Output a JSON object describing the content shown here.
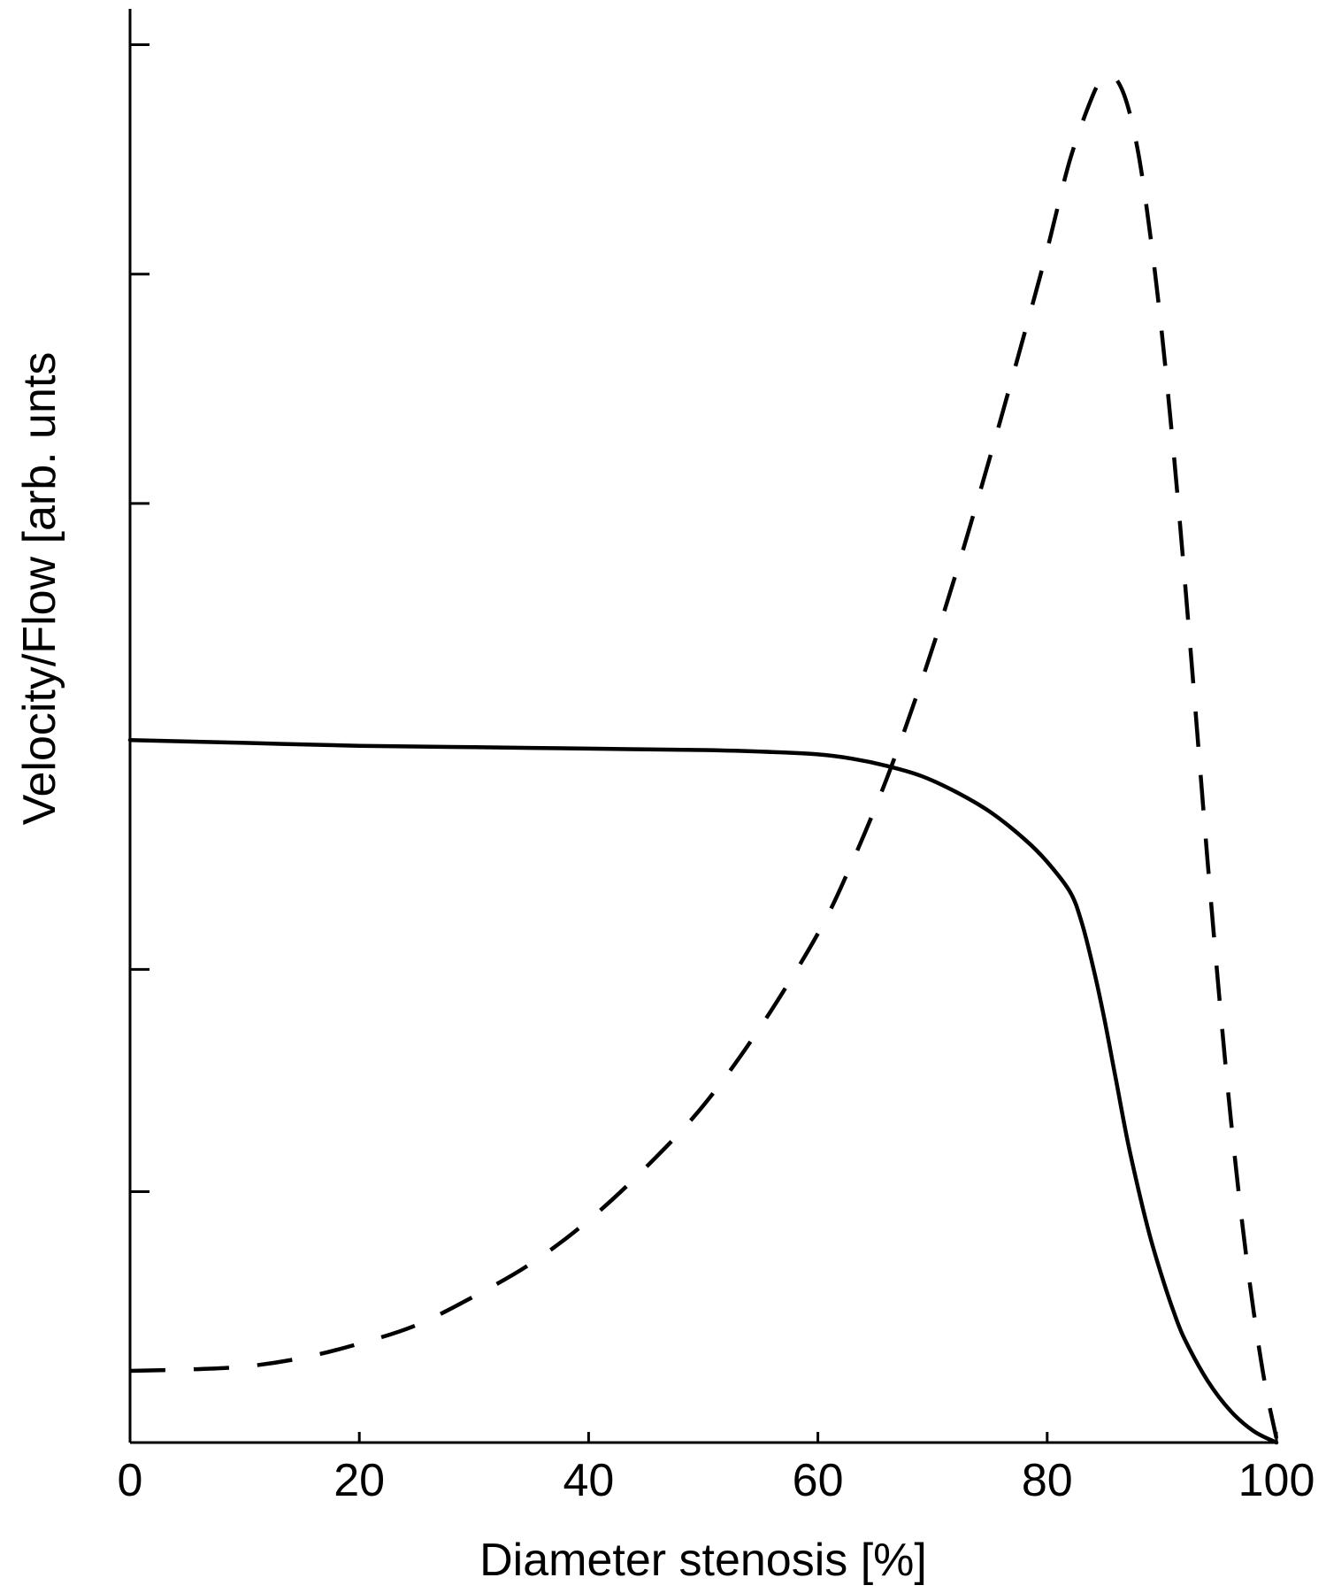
{
  "chart_data": {
    "type": "line",
    "title": "",
    "xlabel": "Diameter stenosis [%]",
    "ylabel": "Velocity/Flow [arb. unts",
    "xlim": [
      0,
      100
    ],
    "ylim": [
      0,
      100
    ],
    "x_ticks": [
      "0",
      "20",
      "40",
      "60",
      "80",
      "100"
    ],
    "x_tick_values": [
      0,
      20,
      40,
      60,
      80,
      100
    ],
    "y_tick_values": [
      5,
      17.5,
      33,
      65.5,
      81.5,
      97.5
    ],
    "grid": false,
    "legend": "none",
    "series": [
      {
        "style": "solid",
        "color": "#000000",
        "x": [
          0,
          10,
          20,
          30,
          40,
          50,
          55,
          60,
          63,
          66,
          69,
          72,
          75,
          78,
          80,
          82,
          83,
          84,
          85,
          86,
          87,
          88,
          89,
          90,
          91,
          92,
          94,
          96,
          98,
          100
        ],
        "y": [
          49,
          48.8,
          48.6,
          48.5,
          48.4,
          48.3,
          48.2,
          48,
          47.7,
          47.2,
          46.5,
          45.4,
          44,
          42.1,
          40.5,
          38.4,
          36.3,
          33.2,
          29.5,
          25.3,
          21.1,
          17.5,
          14.3,
          11.6,
          9.2,
          7.2,
          4.3,
          2.2,
          0.8,
          0
        ]
      },
      {
        "style": "dashed",
        "color": "#000000",
        "x": [
          0,
          5,
          10,
          15,
          20,
          25,
          30,
          35,
          40,
          45,
          50,
          55,
          60,
          63,
          66,
          69,
          72,
          75,
          78,
          80,
          82,
          84,
          85,
          86,
          87,
          88,
          89,
          90,
          91,
          92,
          93,
          94,
          95,
          96,
          97,
          98,
          99,
          100
        ],
        "y": [
          5,
          5.1,
          5.3,
          5.9,
          6.9,
          8.2,
          10.2,
          12.5,
          15.5,
          19.2,
          23.5,
          29,
          35.5,
          40.5,
          46.3,
          53,
          60.5,
          68.7,
          77.3,
          83.2,
          89.5,
          94,
          95.2,
          95.1,
          93.3,
          89.7,
          84.2,
          77.4,
          69.3,
          60.2,
          50.4,
          40.5,
          31.2,
          22.7,
          15.4,
          9.2,
          4.1,
          0.3
        ]
      }
    ]
  }
}
